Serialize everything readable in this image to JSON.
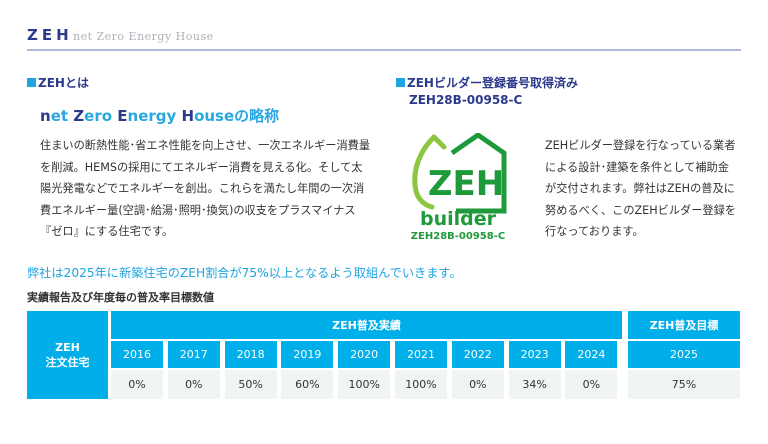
{
  "header": {
    "title": "ZEH",
    "subtitle": "net Zero Energy House"
  },
  "about": {
    "heading": "ZEHとは",
    "catch_parts": [
      {
        "text": "n",
        "cap": true
      },
      {
        "text": "et ",
        "cap": false
      },
      {
        "text": "Z",
        "cap": true
      },
      {
        "text": "ero ",
        "cap": false
      },
      {
        "text": "E",
        "cap": true
      },
      {
        "text": "nergy ",
        "cap": false
      },
      {
        "text": "H",
        "cap": true
      },
      {
        "text": "ouseの略称",
        "cap": false
      }
    ],
    "paragraph_lines": [
      "住まいの断熱性能･省エネ性能を向上させ、一次エネルギー消費量",
      "を削減。HEMSの採用にてエネルギー消費を見える化。そして太",
      "陽光発電などでエネルギーを創出。これらを満たし年間の一次消",
      "費エネルギー量(空調･給湯･照明･換気)の収支をプラスマイナス",
      "『ゼロ』にする住宅です。"
    ]
  },
  "builder": {
    "heading": "ZEHビルダー登録番号取得済み",
    "registration_number": "ZEH28B-00958-C",
    "logo": {
      "main_text": "ZEH",
      "sub_text": "builder",
      "number": "ZEH28B-00958-C",
      "color_dark": "#1f9a3a",
      "color_light": "#8cc63f"
    },
    "paragraph_lines": [
      "ZEHビルダー登録を行なっている業者",
      "による設計･建築を条件として補助金",
      "が交付されます。弊社はZEHの普及に",
      "努めるべく、このZEHビルダー登録を",
      "行なっております。"
    ]
  },
  "goal_statement": "弊社は2025年に新築住宅のZEH割合が75%以上となるよう取組んでいきます。",
  "table": {
    "title": "実績報告及び年度毎の普及率目標数値",
    "row_header_lines": [
      "ZEH",
      "注文住宅"
    ],
    "actual_group_label": "ZEH普及実績",
    "target_group_label": "ZEH普及目標",
    "actual": [
      {
        "year": "2016",
        "value": "0%"
      },
      {
        "year": "2017",
        "value": "0%"
      },
      {
        "year": "2018",
        "value": "50%"
      },
      {
        "year": "2019",
        "value": "60%"
      },
      {
        "year": "2020",
        "value": "100%"
      },
      {
        "year": "2021",
        "value": "100%"
      },
      {
        "year": "2022",
        "value": "0%"
      },
      {
        "year": "2023",
        "value": "34%"
      },
      {
        "year": "2024",
        "value": "0%"
      }
    ],
    "target": {
      "year": "2025",
      "value": "75%"
    }
  },
  "colors": {
    "accent_blue": "#00aeea",
    "navy": "#2c3a8c",
    "cell_gray": "#f0f4f5"
  }
}
